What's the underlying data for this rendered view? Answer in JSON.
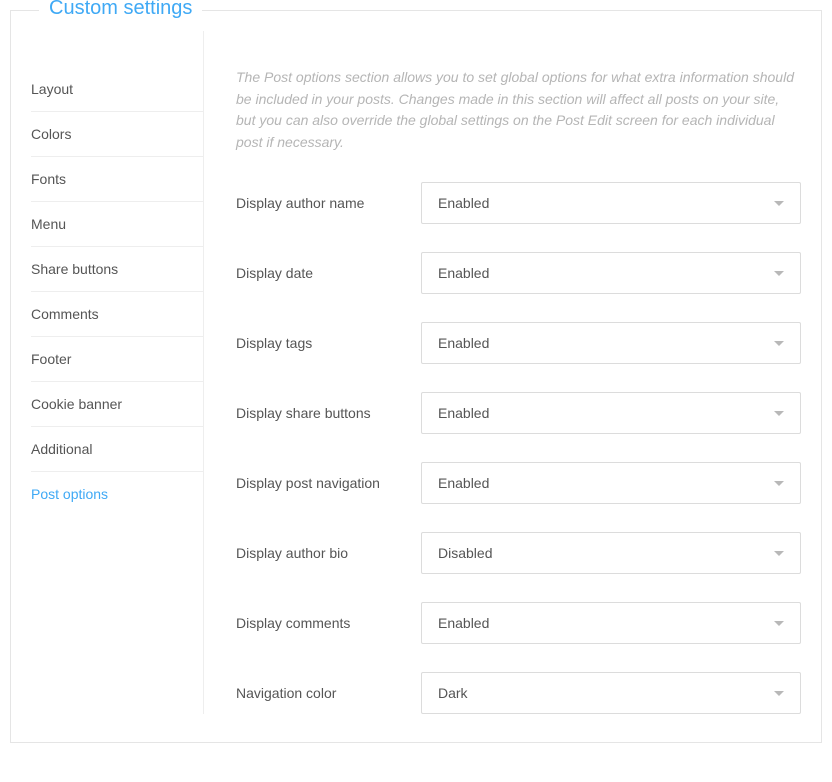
{
  "panel": {
    "legend": "Custom settings"
  },
  "sidebar": {
    "items": [
      {
        "label": "Layout"
      },
      {
        "label": "Colors"
      },
      {
        "label": "Fonts"
      },
      {
        "label": "Menu"
      },
      {
        "label": "Share buttons"
      },
      {
        "label": "Comments"
      },
      {
        "label": "Footer"
      },
      {
        "label": "Cookie banner"
      },
      {
        "label": "Additional"
      },
      {
        "label": "Post options"
      }
    ],
    "active_index": 9
  },
  "main": {
    "description": "The Post options section allows you to set global options for what extra information should be included in your posts. Changes made in this section will affect all posts on your site, but you can also override the global settings on the Post Edit screen for each individual post if necessary.",
    "rows": [
      {
        "label": "Display author name",
        "value": "Enabled"
      },
      {
        "label": "Display date",
        "value": "Enabled"
      },
      {
        "label": "Display tags",
        "value": "Enabled"
      },
      {
        "label": "Display share buttons",
        "value": "Enabled"
      },
      {
        "label": "Display post navigation",
        "value": "Enabled"
      },
      {
        "label": "Display author bio",
        "value": "Disabled"
      },
      {
        "label": "Display comments",
        "value": "Enabled"
      },
      {
        "label": "Navigation color",
        "value": "Dark"
      }
    ]
  },
  "colors": {
    "accent": "#3fa9f5",
    "border": "#e5e5e5",
    "divider": "#eeeeee",
    "text": "#555555",
    "muted": "#b5b5b5",
    "caret": "#b8b8b8",
    "input_border": "#dcdcdc"
  }
}
